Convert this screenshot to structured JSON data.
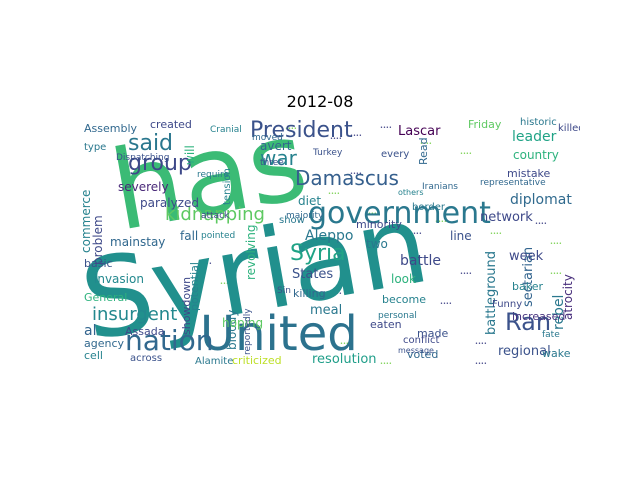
{
  "title": "2012-08",
  "words": [
    {
      "text": "Syrian",
      "color": "#21908d"
    },
    {
      "text": "has",
      "color": "#3bbb75"
    },
    {
      "text": "United",
      "color": "#2c728e"
    },
    {
      "text": "government",
      "color": "#2a788e"
    },
    {
      "text": "President",
      "color": "#3b528b"
    },
    {
      "text": "nation",
      "color": "#31688e"
    },
    {
      "text": "Damascus",
      "color": "#355f8d"
    },
    {
      "text": "group",
      "color": "#3e4989"
    },
    {
      "text": "said",
      "color": "#2a778e"
    },
    {
      "text": "war",
      "color": "#26828e"
    },
    {
      "text": "kidnapping",
      "color": "#5ec962"
    },
    {
      "text": "Syria",
      "color": "#20a386"
    },
    {
      "text": "Ran",
      "color": "#3b528b"
    },
    {
      "text": "insurgent",
      "color": "#23888e"
    },
    {
      "text": "Aleppo",
      "color": "#2a788e"
    },
    {
      "text": "network",
      "color": "#3e4989"
    },
    {
      "text": "diplomat",
      "color": "#306a8e"
    },
    {
      "text": "leader",
      "color": "#20a386"
    },
    {
      "text": "country",
      "color": "#2db27d"
    },
    {
      "text": "Lascar",
      "color": "#440154"
    },
    {
      "text": "battle",
      "color": "#3e4989"
    },
    {
      "text": "rebel",
      "color": "#2a788e"
    },
    {
      "text": "regional",
      "color": "#3b528b"
    },
    {
      "text": "increased",
      "color": "#46327e"
    },
    {
      "text": "sectarian",
      "color": "#32648e"
    },
    {
      "text": "battleground",
      "color": "#2a788e"
    },
    {
      "text": "atrocity",
      "color": "#472d7b"
    },
    {
      "text": "resolution",
      "color": "#1f9e89"
    },
    {
      "text": "criticized",
      "color": "#bddf26"
    },
    {
      "text": "Alamite",
      "color": "#2a788e"
    },
    {
      "text": "across",
      "color": "#3b528b"
    },
    {
      "text": "agency",
      "color": "#31688e"
    },
    {
      "text": "cell",
      "color": "#26828e"
    },
    {
      "text": "Assada",
      "color": "#3e4989"
    },
    {
      "text": "al",
      "color": "#32648e"
    },
    {
      "text": "invasion",
      "color": "#23888e"
    },
    {
      "text": "General",
      "color": "#2db27d"
    },
    {
      "text": "basic",
      "color": "#3b528b"
    },
    {
      "text": "mainstay",
      "color": "#31688e"
    },
    {
      "text": "problem",
      "color": "#3e4989"
    },
    {
      "text": "commerce",
      "color": "#26828e"
    },
    {
      "text": "severely",
      "color": "#482878"
    },
    {
      "text": "paralyzed",
      "color": "#3e4989"
    },
    {
      "text": "Dispatching",
      "color": "#3b528b"
    },
    {
      "text": "type",
      "color": "#2a788e"
    },
    {
      "text": "created",
      "color": "#3e4989"
    },
    {
      "text": "Assembly",
      "color": "#31688e"
    },
    {
      "text": "will",
      "color": "#2db27d"
    },
    {
      "text": "fall",
      "color": "#31688e"
    },
    {
      "text": "potential",
      "color": "#26828e"
    },
    {
      "text": "showdown",
      "color": "#3e4989"
    },
    {
      "text": "bloody",
      "color": "#2a788e"
    },
    {
      "text": "hoping",
      "color": "#5ec962"
    },
    {
      "text": "States",
      "color": "#3b528b"
    },
    {
      "text": "killing",
      "color": "#31688e"
    },
    {
      "text": "meal",
      "color": "#2a788e"
    },
    {
      "text": "eaten",
      "color": "#3e4989"
    },
    {
      "text": "look",
      "color": "#2db27d"
    },
    {
      "text": "become",
      "color": "#26828e"
    },
    {
      "text": "made",
      "color": "#3b528b"
    },
    {
      "text": "voted",
      "color": "#31688e"
    },
    {
      "text": "wake",
      "color": "#2a788e"
    },
    {
      "text": "week",
      "color": "#3e4989"
    },
    {
      "text": "line",
      "color": "#3b528b"
    },
    {
      "text": "two",
      "color": "#2a788e"
    },
    {
      "text": "baker",
      "color": "#26828e"
    },
    {
      "text": "mistake",
      "color": "#3e4989"
    },
    {
      "text": "Friday",
      "color": "#5ec962"
    },
    {
      "text": "Read",
      "color": "#31688e"
    },
    {
      "text": "every",
      "color": "#3b528b"
    },
    {
      "text": "border",
      "color": "#2a788e"
    },
    {
      "text": "diet",
      "color": "#26828e"
    },
    {
      "text": "minority",
      "color": "#3e4989"
    },
    {
      "text": "show",
      "color": "#2a788e"
    },
    {
      "text": "Turkey",
      "color": "#3b528b"
    },
    {
      "text": "avert",
      "color": "#31688e"
    },
    {
      "text": "tension",
      "color": "#26828e"
    },
    {
      "text": "Funny",
      "color": "#3e4989"
    },
    {
      "text": "fate",
      "color": "#2a788e"
    },
    {
      "text": "Sin",
      "color": "#3b528b"
    },
    {
      "text": "Iranians",
      "color": "#31688e"
    },
    {
      "text": "others",
      "color": "#26828e"
    },
    {
      "text": "conflict",
      "color": "#3e4989"
    },
    {
      "text": "personal",
      "color": "#2a788e"
    },
    {
      "text": "message",
      "color": "#3b528b"
    },
    {
      "text": "representative",
      "color": "#31688e"
    },
    {
      "text": "historic",
      "color": "#2a788e"
    },
    {
      "text": "killed",
      "color": "#3e4989"
    },
    {
      "text": "Cranial",
      "color": "#26828e"
    },
    {
      "text": "three",
      "color": "#3b528b"
    },
    {
      "text": "moved",
      "color": "#31688e"
    },
    {
      "text": "require",
      "color": "#2a788e"
    },
    {
      "text": "attack",
      "color": "#3e4989"
    },
    {
      "text": "pointed",
      "color": "#26828e"
    },
    {
      "text": "reportedly",
      "color": "#3b528b"
    },
    {
      "text": "majority",
      "color": "#31688e"
    },
    {
      "text": "revolving",
      "color": "#2db27d"
    }
  ]
}
